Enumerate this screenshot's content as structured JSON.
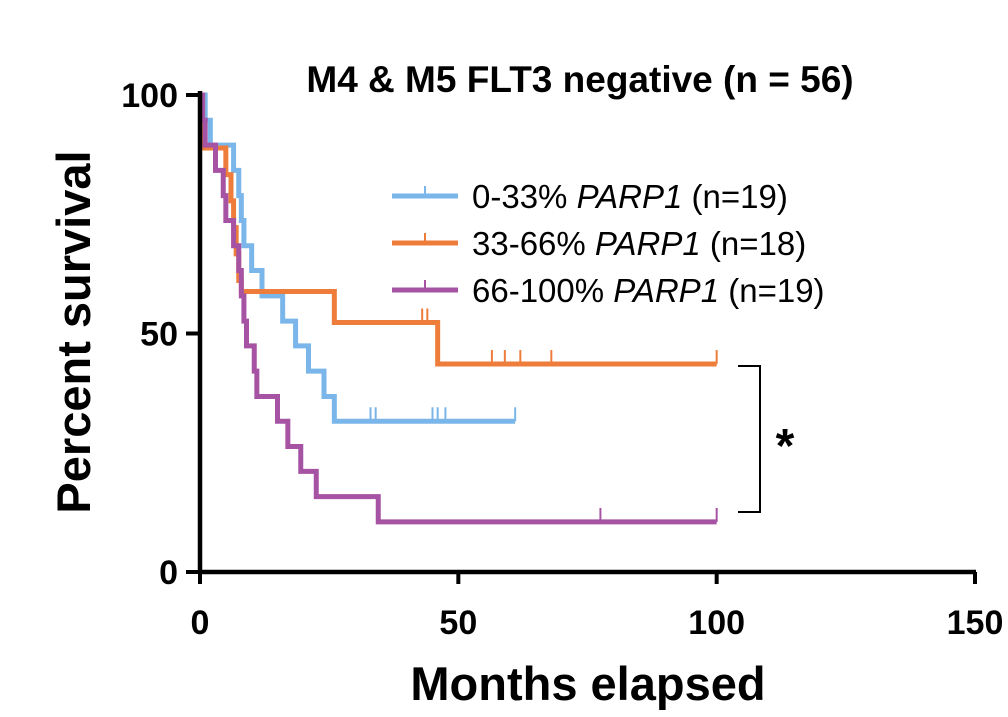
{
  "chart_data": {
    "type": "line",
    "subtype": "kaplan-meier",
    "title": "M4 & M5 FLT3 negative (n = 56)",
    "xlabel": "Months elapsed",
    "ylabel": "Percent survival",
    "xlim": [
      0,
      150
    ],
    "ylim": [
      0,
      100
    ],
    "xticks": [
      0,
      50,
      100,
      150
    ],
    "yticks": [
      0,
      50,
      100
    ],
    "xtick_labels": [
      "0",
      "50",
      "100",
      "150"
    ],
    "ytick_labels": [
      "0",
      "50",
      "100"
    ],
    "legend_position": "top-right",
    "series": [
      {
        "name": "0-33%",
        "gene": "PARP1",
        "n_label": "(n=19)",
        "color": "#7ab6ea",
        "steps": [
          [
            0,
            100
          ],
          [
            1,
            94.7
          ],
          [
            2,
            89.5
          ],
          [
            6.5,
            89.5
          ],
          [
            6.5,
            84.2
          ],
          [
            7.5,
            78.9
          ],
          [
            8,
            73.7
          ],
          [
            8.5,
            68.4
          ],
          [
            10,
            63.2
          ],
          [
            12,
            57.9
          ],
          [
            16,
            52.6
          ],
          [
            18.5,
            47.4
          ],
          [
            21,
            42.1
          ],
          [
            24,
            36.8
          ],
          [
            26,
            31.6
          ],
          [
            61,
            31.6
          ]
        ],
        "censored": [
          33,
          34,
          45,
          46,
          47.5,
          61
        ]
      },
      {
        "name": "33-66%",
        "gene": "PARP1",
        "n_label": "(n=18)",
        "color": "#ee7d3c",
        "steps": [
          [
            0,
            100
          ],
          [
            0.5,
            88.9
          ],
          [
            5,
            88.9
          ],
          [
            5,
            83.3
          ],
          [
            6,
            77.8
          ],
          [
            6.5,
            72.2
          ],
          [
            7,
            66.7
          ],
          [
            7.5,
            61.1
          ],
          [
            8,
            58.8
          ],
          [
            26,
            58.8
          ],
          [
            26,
            52.3
          ],
          [
            46,
            52.3
          ],
          [
            46,
            43.6
          ],
          [
            100,
            43.6
          ]
        ],
        "censored": [
          26,
          43,
          44,
          56.5,
          59,
          62,
          68,
          100
        ]
      },
      {
        "name": "66-100%",
        "gene": "PARP1",
        "n_label": "(n=19)",
        "color": "#a653a3",
        "steps": [
          [
            0,
            100
          ],
          [
            0.5,
            94.7
          ],
          [
            1,
            89.5
          ],
          [
            3,
            84.2
          ],
          [
            4.5,
            78.9
          ],
          [
            5,
            73.7
          ],
          [
            6.5,
            68.4
          ],
          [
            7.5,
            63.2
          ],
          [
            8,
            57.9
          ],
          [
            8.5,
            52.6
          ],
          [
            9,
            47.4
          ],
          [
            10.5,
            42.1
          ],
          [
            11,
            36.8
          ],
          [
            15,
            31.6
          ],
          [
            17,
            26.3
          ],
          [
            19.5,
            21.1
          ],
          [
            22.5,
            15.8
          ],
          [
            34.5,
            10.5
          ],
          [
            100,
            10.5
          ]
        ],
        "censored": [
          77.5,
          100
        ]
      }
    ],
    "annotations": [
      {
        "text": "*",
        "type": "significance-bracket",
        "between_y": [
          43.6,
          10.5
        ]
      }
    ]
  }
}
